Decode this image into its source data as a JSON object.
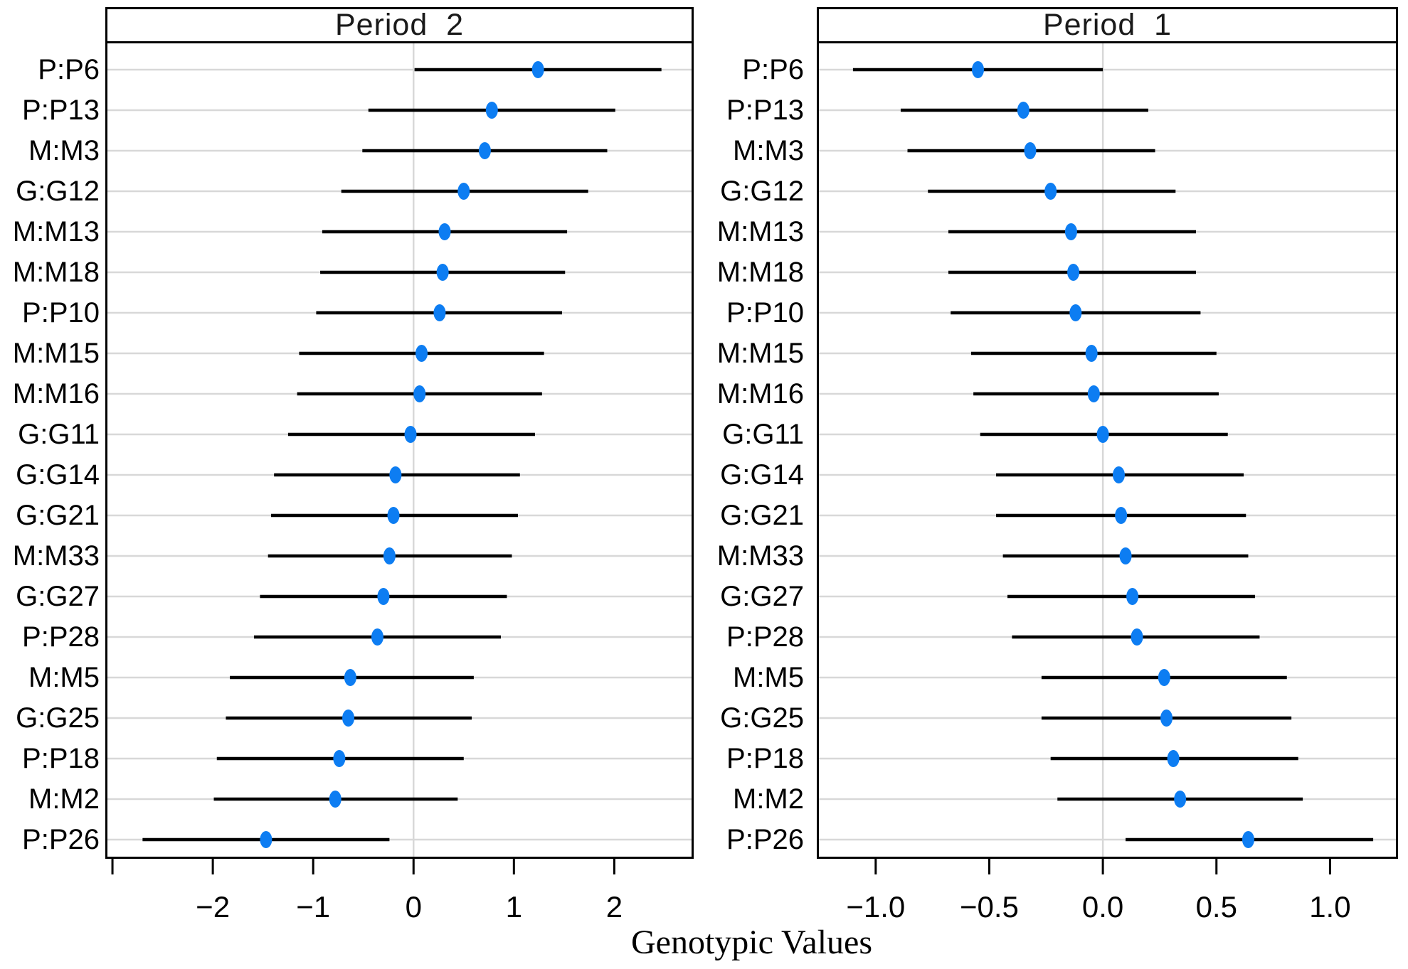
{
  "figure": {
    "xlabel": "Genotypic Values",
    "colors": {
      "dot": "#0d7df2",
      "ci_line": "#000000",
      "grid": "#d8d8d8",
      "border": "#000000",
      "background": "#ffffff",
      "text": "#000000"
    }
  },
  "chart_data": [
    {
      "type": "scatter",
      "panel_title": "Period  2",
      "orientation": "horizontal-dotplot-with-ci",
      "grid": "horizontal rows + vertical reference line at 0",
      "legend": "none",
      "xlim": [
        -3.05,
        2.77
      ],
      "xticks": [
        -3,
        -2,
        -1,
        0,
        1,
        2
      ],
      "xtick_labels": [
        "",
        "−2",
        "−1",
        "0",
        "1",
        "2"
      ],
      "reference_line_x": 0,
      "categories": [
        "P:P6",
        "P:P13",
        "M:M3",
        "G:G12",
        "M:M13",
        "M:M18",
        "P:P10",
        "M:M15",
        "M:M16",
        "G:G11",
        "G:G14",
        "G:G21",
        "M:M33",
        "G:G27",
        "P:P28",
        "M:M5",
        "G:G25",
        "P:P18",
        "M:M2",
        "P:P26"
      ],
      "series": [
        {
          "name": "estimate",
          "values": [
            1.24,
            0.78,
            0.71,
            0.5,
            0.31,
            0.29,
            0.26,
            0.08,
            0.06,
            -0.03,
            -0.18,
            -0.2,
            -0.24,
            -0.3,
            -0.36,
            -0.63,
            -0.65,
            -0.74,
            -0.78,
            -1.47
          ]
        },
        {
          "name": "ci_lower",
          "values": [
            0.01,
            -0.45,
            -0.51,
            -0.72,
            -0.91,
            -0.93,
            -0.97,
            -1.14,
            -1.16,
            -1.25,
            -1.39,
            -1.42,
            -1.45,
            -1.53,
            -1.59,
            -1.83,
            -1.87,
            -1.96,
            -1.99,
            -2.7
          ]
        },
        {
          "name": "ci_upper",
          "values": [
            2.47,
            2.01,
            1.93,
            1.74,
            1.53,
            1.51,
            1.48,
            1.3,
            1.28,
            1.21,
            1.06,
            1.04,
            0.98,
            0.93,
            0.87,
            0.6,
            0.58,
            0.5,
            0.44,
            -0.24
          ]
        }
      ]
    },
    {
      "type": "scatter",
      "panel_title": "Period  1",
      "orientation": "horizontal-dotplot-with-ci",
      "grid": "horizontal rows + vertical reference line at 0",
      "legend": "none",
      "xlim": [
        -1.25,
        1.29
      ],
      "xticks": [
        -1.0,
        -0.5,
        0.0,
        0.5,
        1.0
      ],
      "xtick_labels": [
        "−1.0",
        "−0.5",
        "0.0",
        "0.5",
        "1.0"
      ],
      "reference_line_x": 0,
      "categories": [
        "P:P6",
        "P:P13",
        "M:M3",
        "G:G12",
        "M:M13",
        "M:M18",
        "P:P10",
        "M:M15",
        "M:M16",
        "G:G11",
        "G:G14",
        "G:G21",
        "M:M33",
        "G:G27",
        "P:P28",
        "M:M5",
        "G:G25",
        "P:P18",
        "M:M2",
        "P:P26"
      ],
      "series": [
        {
          "name": "estimate",
          "values": [
            -0.55,
            -0.35,
            -0.32,
            -0.23,
            -0.14,
            -0.13,
            -0.12,
            -0.05,
            -0.04,
            0.0,
            0.07,
            0.08,
            0.1,
            0.13,
            0.15,
            0.27,
            0.28,
            0.31,
            0.34,
            0.64
          ]
        },
        {
          "name": "ci_lower",
          "values": [
            -1.1,
            -0.89,
            -0.86,
            -0.77,
            -0.68,
            -0.68,
            -0.67,
            -0.58,
            -0.57,
            -0.54,
            -0.47,
            -0.47,
            -0.44,
            -0.42,
            -0.4,
            -0.27,
            -0.27,
            -0.23,
            -0.2,
            0.1
          ]
        },
        {
          "name": "ci_upper",
          "values": [
            0.0,
            0.2,
            0.23,
            0.32,
            0.41,
            0.41,
            0.43,
            0.5,
            0.51,
            0.55,
            0.62,
            0.63,
            0.64,
            0.67,
            0.69,
            0.81,
            0.83,
            0.86,
            0.88,
            1.19
          ]
        }
      ]
    }
  ]
}
